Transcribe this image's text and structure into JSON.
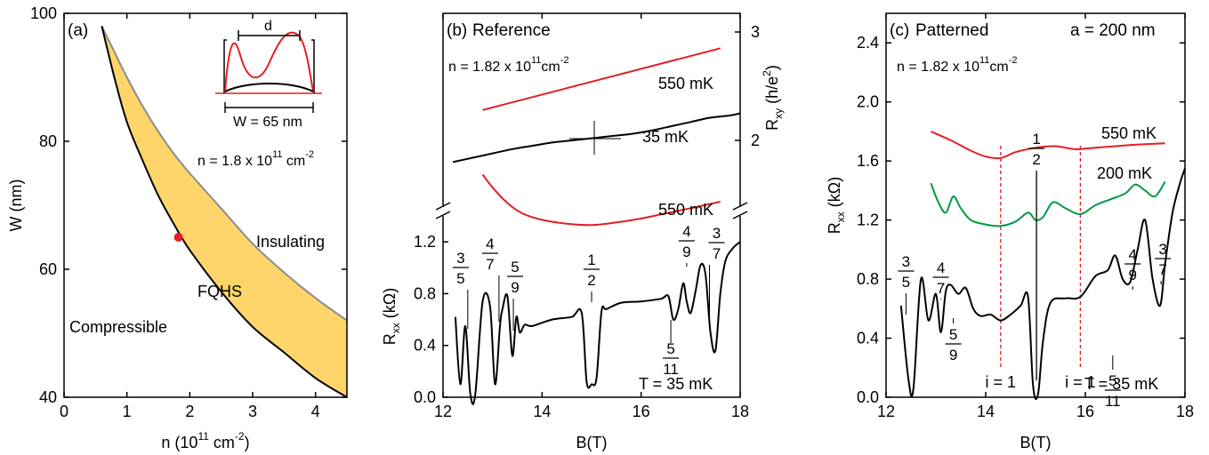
{
  "colors": {
    "red": "#e31e24",
    "green": "#009a44",
    "black": "#000000",
    "band": "#fdd56a",
    "band_upper_edge": "#8c8c8c"
  },
  "chart_data": [
    {
      "type": "area",
      "panel_label": "(a)",
      "xlabel": {
        "main": "n (10",
        "sup": "11",
        "mid": " cm",
        "sup2": "-2",
        "end": ")"
      },
      "ylabel": "W (nm)",
      "xlim": [
        0,
        4.5
      ],
      "ylim": [
        40,
        100
      ],
      "xticks": [
        0,
        1,
        2,
        3,
        4
      ],
      "yticks": [
        40,
        60,
        80,
        100
      ],
      "regions": {
        "fqhs": "FQHS",
        "insulating": "Insulating",
        "compressible": "Compressible"
      },
      "lower_boundary": {
        "x": [
          0.6,
          0.8,
          1.0,
          1.25,
          1.5,
          1.75,
          2.0,
          2.5,
          3.0,
          3.5,
          4.0,
          4.5
        ],
        "y": [
          98,
          90,
          83,
          77,
          71.5,
          67,
          63,
          56.5,
          51,
          47,
          43,
          40
        ]
      },
      "upper_boundary": {
        "x": [
          0.6,
          0.8,
          1.0,
          1.25,
          1.5,
          1.75,
          2.0,
          2.5,
          3.0,
          3.5,
          4.0,
          4.5
        ],
        "y": [
          98,
          94,
          90,
          85.5,
          81.5,
          78,
          75,
          69.5,
          64,
          59.5,
          55.5,
          52
        ]
      },
      "point": {
        "x": 1.82,
        "y": 65
      },
      "density_note": {
        "main": "n = 1.8 x 10",
        "sup": "11",
        "mid": " cm",
        "sup2": "-2"
      },
      "inset": {
        "d_label": "d",
        "w_label": "W = 65 nm"
      }
    },
    {
      "type": "line",
      "panel_label": "(b)",
      "title": "Reference",
      "density_note": {
        "main": "n = 1.82 x 10",
        "sup": "11",
        "mid": "cm",
        "sup2": "-2"
      },
      "xlabel": "B(T)",
      "ylabel_left": {
        "main": "R",
        "sub": "xx",
        "end": " (kΩ)"
      },
      "ylabel_right": {
        "main": "R",
        "sub": "xy",
        "end": " (h/e",
        "sup": "2",
        "close": ")"
      },
      "xlim": [
        12,
        18
      ],
      "xticks": [
        12,
        14,
        16,
        18
      ],
      "rxx_ylim": [
        0,
        1.4
      ],
      "rxx_yticks": [
        0.0,
        0.4,
        0.8,
        1.2
      ],
      "rxx_ytick_labels": [
        "0.0",
        "0.4",
        "0.8",
        "1.2"
      ],
      "rxy_yticks": [
        2,
        3
      ],
      "rxy_ytick_labels": [
        "2",
        "3"
      ],
      "temperature_note": "T = 35 mK",
      "series": [
        {
          "name": "550 mK",
          "quantity": "Rxy",
          "x": [
            12.8,
            17.6
          ],
          "y": [
            2.28,
            2.85
          ]
        },
        {
          "name": "35 mK",
          "quantity": "Rxy",
          "x": [
            12.2,
            12.6,
            13.0,
            13.4,
            13.8,
            14.2,
            14.6,
            15.0,
            15.4,
            15.8,
            16.2,
            16.6,
            17.0,
            17.4,
            17.8,
            18.0
          ],
          "y": [
            1.8,
            1.84,
            1.88,
            1.92,
            1.95,
            1.98,
            2.0,
            2.02,
            2.04,
            2.06,
            2.09,
            2.13,
            2.17,
            2.21,
            2.23,
            2.25
          ]
        },
        {
          "name": "550 mK",
          "quantity": "Rxx",
          "x": [
            12.8,
            13.0,
            13.3,
            13.6,
            14.0,
            14.5,
            15.0,
            15.5,
            16.0,
            16.5,
            17.0,
            17.6
          ],
          "y": [
            1.72,
            1.62,
            1.5,
            1.42,
            1.37,
            1.34,
            1.33,
            1.35,
            1.38,
            1.42,
            1.46,
            1.51
          ]
        },
        {
          "name": "35 mK",
          "quantity": "Rxx",
          "x": [
            12.25,
            12.35,
            12.45,
            12.55,
            12.65,
            12.8,
            12.95,
            13.05,
            13.15,
            13.2,
            13.3,
            13.4,
            13.48,
            13.55,
            13.65,
            13.8,
            14.2,
            14.6,
            14.8,
            14.9,
            15.0,
            15.1,
            15.2,
            15.3,
            15.6,
            16.0,
            16.4,
            16.55,
            16.65,
            16.75,
            16.85,
            16.92,
            17.0,
            17.1,
            17.2,
            17.3,
            17.4,
            17.5,
            17.6,
            17.7,
            17.85,
            18.0
          ],
          "y": [
            0.62,
            0.1,
            0.55,
            0.03,
            0.02,
            0.74,
            0.7,
            0.1,
            0.55,
            0.68,
            0.78,
            0.32,
            0.62,
            0.5,
            0.56,
            0.55,
            0.6,
            0.62,
            0.65,
            0.12,
            0.1,
            0.15,
            0.66,
            0.68,
            0.73,
            0.74,
            0.76,
            0.78,
            0.6,
            0.68,
            0.88,
            0.74,
            0.65,
            0.82,
            1.02,
            0.95,
            0.5,
            0.36,
            0.8,
            1.05,
            1.15,
            1.2
          ]
        }
      ],
      "fraction_labels": [
        {
          "num": "3",
          "den": "5",
          "x": 12.5
        },
        {
          "num": "4",
          "den": "7",
          "x": 13.13
        },
        {
          "num": "5",
          "den": "9",
          "x": 13.42
        },
        {
          "num": "1",
          "den": "2",
          "x": 15.0
        },
        {
          "num": "5",
          "den": "11",
          "x": 16.6
        },
        {
          "num": "4",
          "den": "9",
          "x": 16.92
        },
        {
          "num": "3",
          "den": "7",
          "x": 17.38
        }
      ]
    },
    {
      "type": "line",
      "panel_label": "(c)",
      "title": "Patterned",
      "lattice_note": "a = 200 nm",
      "density_note": {
        "main": "n = 1.82 x 10",
        "sup": "11",
        "mid": "cm",
        "sup2": "-2"
      },
      "xlabel": "B(T)",
      "ylabel": {
        "main": "R",
        "sub": "xx",
        "end": " (kΩ)"
      },
      "xlim": [
        12,
        18
      ],
      "ylim": [
        0,
        2.6
      ],
      "xticks": [
        12,
        14,
        16,
        18
      ],
      "yticks": [
        0.0,
        0.4,
        0.8,
        1.2,
        1.6,
        2.0,
        2.4
      ],
      "ytick_labels": [
        "0.0",
        "0.4",
        "0.8",
        "1.2",
        "1.6",
        "2.0",
        "2.4"
      ],
      "temperature_note": "T = 35 mK",
      "series": [
        {
          "name": "550 mK",
          "x": [
            12.9,
            13.3,
            13.7,
            14.0,
            14.3,
            14.6,
            15.0,
            15.4,
            15.8,
            16.2,
            16.6,
            17.0,
            17.6
          ],
          "y": [
            1.8,
            1.74,
            1.67,
            1.63,
            1.62,
            1.66,
            1.69,
            1.7,
            1.68,
            1.69,
            1.7,
            1.71,
            1.72
          ]
        },
        {
          "name": "200 mK",
          "x": [
            12.9,
            13.05,
            13.2,
            13.35,
            13.5,
            13.7,
            14.0,
            14.3,
            14.6,
            14.85,
            15.0,
            15.15,
            15.35,
            15.6,
            15.9,
            16.2,
            16.5,
            16.8,
            17.0,
            17.2,
            17.4,
            17.6
          ],
          "y": [
            1.45,
            1.32,
            1.25,
            1.36,
            1.28,
            1.2,
            1.17,
            1.16,
            1.19,
            1.25,
            1.2,
            1.22,
            1.32,
            1.28,
            1.24,
            1.3,
            1.34,
            1.38,
            1.44,
            1.4,
            1.36,
            1.46
          ]
        },
        {
          "name": "35 mK",
          "x": [
            12.3,
            12.45,
            12.55,
            12.7,
            12.85,
            13.0,
            13.1,
            13.2,
            13.3,
            13.45,
            13.6,
            13.75,
            13.9,
            14.1,
            14.3,
            14.5,
            14.7,
            14.85,
            14.95,
            15.05,
            15.15,
            15.3,
            15.6,
            15.9,
            16.2,
            16.45,
            16.6,
            16.75,
            16.9,
            17.05,
            17.2,
            17.35,
            17.5,
            17.6,
            17.75,
            17.9,
            18.0
          ],
          "y": [
            0.62,
            0.12,
            0.06,
            0.8,
            0.52,
            0.7,
            0.44,
            0.72,
            0.76,
            0.7,
            0.74,
            0.6,
            0.55,
            0.56,
            0.52,
            0.56,
            0.62,
            0.68,
            0.08,
            0.02,
            0.38,
            0.64,
            0.67,
            0.68,
            0.82,
            0.86,
            0.96,
            0.8,
            0.78,
            1.0,
            1.2,
            0.8,
            0.62,
            0.9,
            1.25,
            1.45,
            1.55
          ]
        }
      ],
      "fraction_labels": [
        {
          "num": "3",
          "den": "5",
          "x": 12.4
        },
        {
          "num": "4",
          "den": "7",
          "x": 13.1
        },
        {
          "num": "5",
          "den": "9",
          "x": 13.35
        },
        {
          "num": "1",
          "den": "2",
          "x": 15.02
        },
        {
          "num": "5",
          "den": "11",
          "x": 16.55
        },
        {
          "num": "4",
          "den": "9",
          "x": 16.95
        },
        {
          "num": "3",
          "den": "7",
          "x": 17.52
        }
      ],
      "integer_labels": [
        {
          "text": "i = 1",
          "x": 14.3
        },
        {
          "text": "i = 1",
          "x": 15.9
        }
      ]
    }
  ]
}
